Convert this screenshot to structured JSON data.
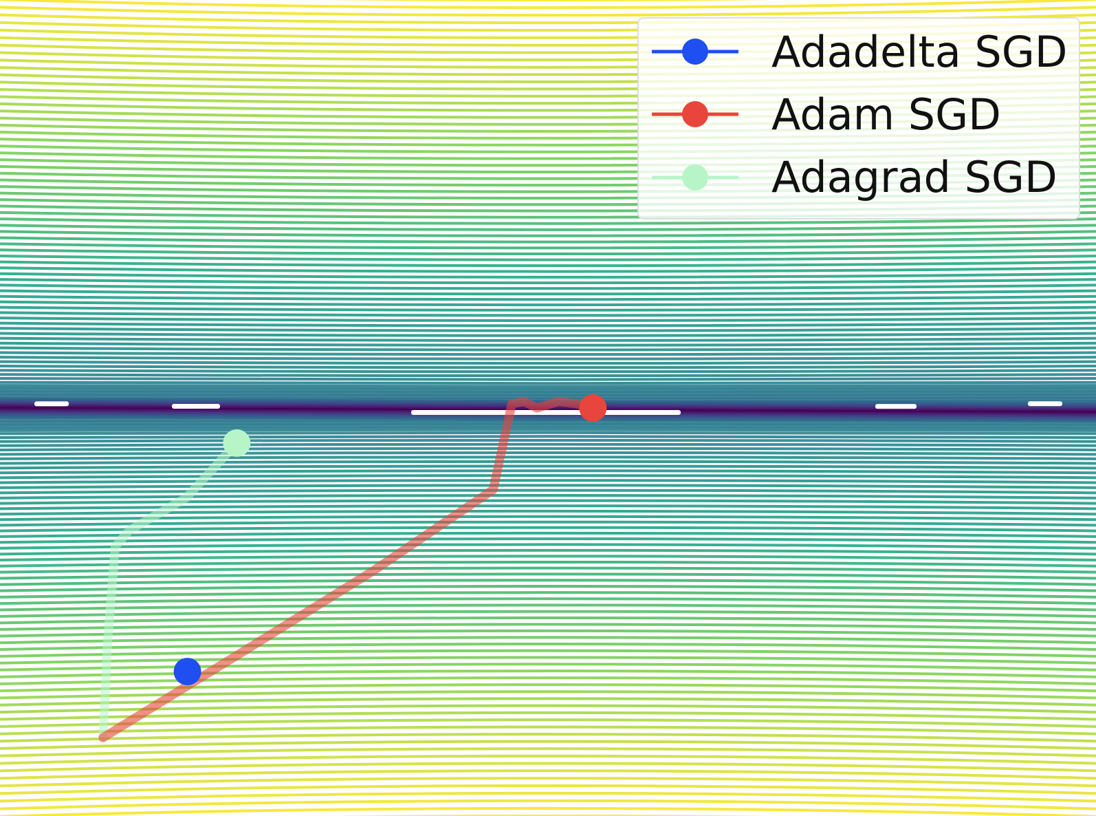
{
  "chart_data": {
    "type": "line",
    "title": "",
    "xlabel": "",
    "ylabel": "",
    "xlim": [
      0,
      1
    ],
    "ylim": [
      0,
      1
    ],
    "grid": false,
    "axes_visible": false,
    "legend_position": "top-right",
    "background": {
      "kind": "contour",
      "colormap": "viridis",
      "minimum_line": "horizontal valley",
      "minimum_y": 0.5
    },
    "series": [
      {
        "name": "Adadelta SGD",
        "color": "#1f4ff0",
        "marker": "circle",
        "points": [
          [
            0.171,
            0.177
          ]
        ]
      },
      {
        "name": "Adam SGD",
        "color": "#e8453c",
        "marker": "circle",
        "points": [
          [
            0.094,
            0.096
          ],
          [
            0.22,
            0.2
          ],
          [
            0.34,
            0.3
          ],
          [
            0.45,
            0.4
          ],
          [
            0.467,
            0.505
          ],
          [
            0.478,
            0.508
          ],
          [
            0.49,
            0.5
          ],
          [
            0.51,
            0.508
          ],
          [
            0.526,
            0.505
          ],
          [
            0.541,
            0.5
          ]
        ]
      },
      {
        "name": "Adagrad SGD",
        "color": "#b7f5c9",
        "marker": "circle",
        "points": [
          [
            0.094,
            0.096
          ],
          [
            0.098,
            0.21
          ],
          [
            0.105,
            0.33
          ],
          [
            0.118,
            0.35
          ],
          [
            0.17,
            0.39
          ],
          [
            0.216,
            0.457
          ]
        ]
      }
    ]
  },
  "legend": {
    "items": [
      {
        "label": "Adadelta SGD",
        "color": "#1f4ff0"
      },
      {
        "label": "Adam SGD",
        "color": "#e8453c"
      },
      {
        "label": "Adagrad SGD",
        "color": "#b7f5c9"
      }
    ]
  }
}
